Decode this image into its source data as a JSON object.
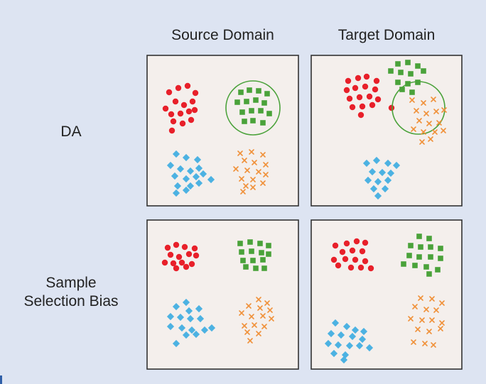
{
  "headers": {
    "source_domain": "Source Domain",
    "target_domain": "Target Domain"
  },
  "rows": {
    "da": "DA",
    "sample_selection_bias_line1": "Sample",
    "sample_selection_bias_line2": "Selection Bias"
  },
  "colors": {
    "background": "#dde4f2",
    "panel_fill": "#f4efec",
    "panel_border": "#333333",
    "red_class": "#e8202a",
    "green_class": "#4aa23a",
    "blue_class": "#4cb2e2",
    "orange_class": "#f0913a",
    "circle": "#4aa23a"
  },
  "marker_shapes": {
    "red_class": "circle",
    "green_class": "square",
    "blue_class": "diamond",
    "orange_class": "cross"
  }
}
